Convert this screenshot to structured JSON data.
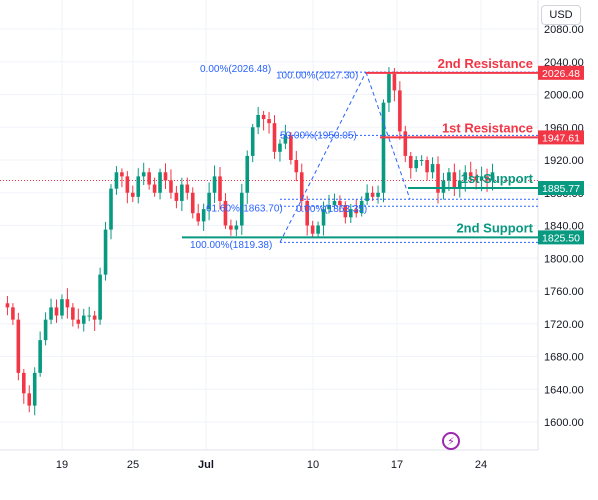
{
  "currency": "USD",
  "chart_data": {
    "type": "candlestick",
    "title": "",
    "xlabel": "",
    "ylabel": "",
    "x_ticks": [
      "19",
      "25",
      "Jul",
      "10",
      "17",
      "24"
    ],
    "y_ticks": [
      "1600.00",
      "1640.00",
      "1680.00",
      "1720.00",
      "1760.00",
      "1800.00",
      "1840.00",
      "1880.00",
      "1920.00",
      "1960.00",
      "2000.00",
      "2040.00",
      "2080.00"
    ],
    "ylim": [
      1585,
      2085
    ],
    "current_price": 1895,
    "price_path": [
      1745,
      1740,
      1725,
      1660,
      1635,
      1620,
      1660,
      1700,
      1725,
      1740,
      1730,
      1750,
      1740,
      1725,
      1720,
      1730,
      1730,
      1725,
      1780,
      1835,
      1885,
      1905,
      1900,
      1880,
      1875,
      1900,
      1905,
      1890,
      1880,
      1905,
      1895,
      1880,
      1870,
      1890,
      1880,
      1855,
      1845,
      1860,
      1880,
      1900,
      1870,
      1840,
      1835,
      1840,
      1880,
      1925,
      1960,
      1975,
      1970,
      1965,
      1930,
      1940,
      1950,
      1920,
      1905,
      1870,
      1840,
      1830,
      1840,
      1860,
      1865,
      1870,
      1865,
      1850,
      1860,
      1855,
      1870,
      1880,
      1875,
      1880,
      1990,
      2025,
      2005,
      1955,
      1925,
      1910,
      1920,
      1920,
      1905,
      1915,
      1880,
      1895,
      1905,
      1885,
      1895,
      1905,
      1900,
      1895,
      1900,
      1895,
      1905
    ],
    "levels": [
      {
        "name": "2nd Resistance",
        "value": 2026.48,
        "label": "2026.48",
        "color": "#f23645"
      },
      {
        "name": "1st Resistance",
        "value": 1947.61,
        "label": "1947.61",
        "color": "#f23645"
      },
      {
        "name": "1st Support",
        "value": 1885.77,
        "label": "1885.77",
        "color": "#089981"
      },
      {
        "name": "2nd Support",
        "value": 1825.5,
        "label": "1825.50",
        "color": "#089981"
      }
    ],
    "fib_labels": [
      {
        "text": "0.00%(2026.48)",
        "value": 2026.48
      },
      {
        "text": "100.00%(2027.30)",
        "value": 2027.3
      },
      {
        "text": "50.00%(1950.05)",
        "value": 1950.05
      },
      {
        "text": "61.60%(1863.70)",
        "value": 1863.7
      },
      {
        "text": "100.00%(1819.38)",
        "value": 1819.38
      },
      {
        "text": "0.00%(1863.35)",
        "value": 1863.35
      }
    ],
    "colors": {
      "up": "#089981",
      "down": "#f23645",
      "fib": "#2962ff",
      "grid": "#f0f3fa"
    }
  }
}
